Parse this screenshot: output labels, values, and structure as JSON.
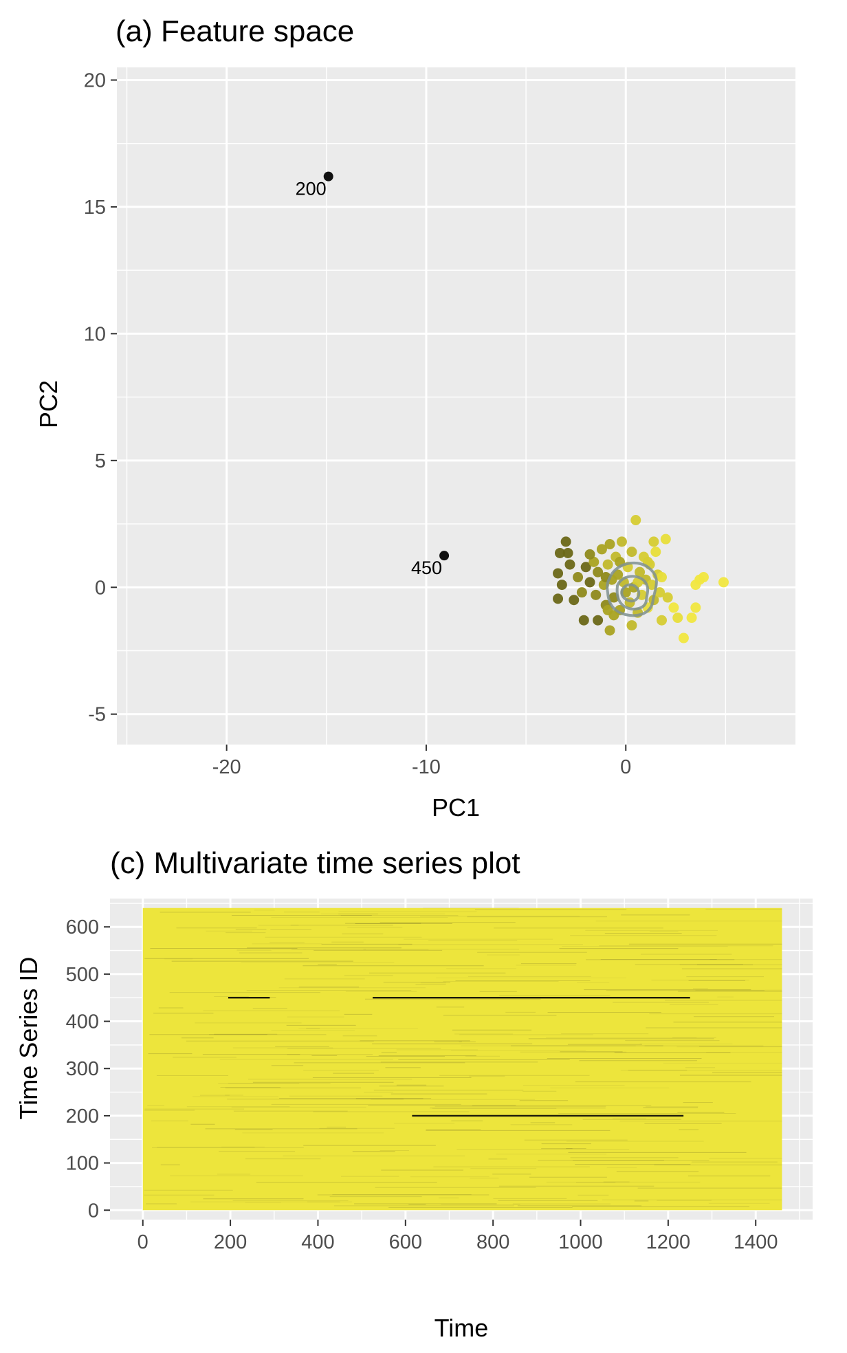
{
  "chart_data": [
    {
      "type": "scatter",
      "title": "(a) Feature space",
      "xlabel": "PC1",
      "ylabel": "PC2",
      "xlim": [
        -25.5,
        8.5
      ],
      "ylim": [
        -6.2,
        20.5
      ],
      "xticks": [
        -20,
        -10,
        0
      ],
      "yticks": [
        20,
        15,
        10,
        5,
        0,
        -5
      ],
      "grid": true,
      "legend": "none",
      "labeled_points": [
        {
          "id": "200",
          "x": -14.9,
          "y": 16.2
        },
        {
          "id": "450",
          "x": -9.1,
          "y": 1.25
        }
      ],
      "cluster_points": [
        [
          -3.3,
          1.35
        ],
        [
          -3.0,
          1.8
        ],
        [
          -2.9,
          1.35
        ],
        [
          -3.4,
          0.55
        ],
        [
          -3.2,
          0.1
        ],
        [
          -3.4,
          -0.45
        ],
        [
          -2.6,
          -0.5
        ],
        [
          -2.4,
          0.4
        ],
        [
          -2.2,
          -0.2
        ],
        [
          -2.0,
          0.8
        ],
        [
          -1.8,
          0.2
        ],
        [
          -1.6,
          1.0
        ],
        [
          -1.5,
          -0.3
        ],
        [
          -1.4,
          0.6
        ],
        [
          -1.2,
          1.5
        ],
        [
          -1.1,
          0.1
        ],
        [
          -1.0,
          -0.7
        ],
        [
          -0.9,
          0.9
        ],
        [
          -0.8,
          1.7
        ],
        [
          -0.7,
          0.3
        ],
        [
          -0.6,
          -0.4
        ],
        [
          -0.5,
          1.2
        ],
        [
          -0.4,
          0.5
        ],
        [
          -0.3,
          -0.9
        ],
        [
          -0.2,
          1.8
        ],
        [
          -0.1,
          0.2
        ],
        [
          0.0,
          -0.2
        ],
        [
          0.1,
          0.8
        ],
        [
          0.2,
          -0.6
        ],
        [
          0.3,
          1.4
        ],
        [
          0.4,
          0.0
        ],
        [
          0.5,
          2.65
        ],
        [
          0.6,
          -1.0
        ],
        [
          0.7,
          0.6
        ],
        [
          0.8,
          -0.3
        ],
        [
          0.9,
          1.2
        ],
        [
          1.0,
          0.3
        ],
        [
          1.1,
          -0.8
        ],
        [
          1.2,
          0.9
        ],
        [
          1.3,
          0.1
        ],
        [
          1.4,
          -0.5
        ],
        [
          1.5,
          1.4
        ],
        [
          1.6,
          0.5
        ],
        [
          1.7,
          -0.2
        ],
        [
          1.8,
          0.4
        ],
        [
          2.0,
          1.9
        ],
        [
          2.1,
          -0.4
        ],
        [
          2.4,
          -0.8
        ],
        [
          2.6,
          -1.2
        ],
        [
          -2.1,
          -1.3
        ],
        [
          -1.4,
          -1.3
        ],
        [
          -0.8,
          -1.7
        ],
        [
          0.3,
          -1.5
        ],
        [
          1.8,
          -1.3
        ],
        [
          2.9,
          -2.0
        ],
        [
          3.5,
          -0.8
        ],
        [
          3.7,
          0.3
        ],
        [
          3.9,
          0.4
        ],
        [
          3.3,
          -1.2
        ],
        [
          3.5,
          0.1
        ],
        [
          4.9,
          0.2
        ],
        [
          -0.9,
          -0.9
        ],
        [
          -1.8,
          1.3
        ],
        [
          -0.3,
          1.0
        ],
        [
          1.1,
          1.0
        ],
        [
          -2.8,
          0.9
        ],
        [
          -1.0,
          0.4
        ],
        [
          0.6,
          0.2
        ],
        [
          -0.6,
          -1.1
        ],
        [
          1.4,
          1.8
        ]
      ]
    },
    {
      "type": "heatmap",
      "title": "(c) Multivariate time series plot",
      "xlabel": "Time",
      "ylabel": "Time Series ID",
      "xlim": [
        -75,
        1530
      ],
      "ylim": [
        -20,
        660
      ],
      "xticks": [
        0,
        200,
        400,
        600,
        800,
        1000,
        1200,
        1400
      ],
      "yticks": [
        600,
        500,
        400,
        300,
        200,
        100,
        0
      ],
      "data_extent": {
        "time": [
          0,
          1460
        ],
        "series_id": [
          0,
          640
        ]
      },
      "fill_color": "#ede53c",
      "grid": true,
      "legend": "none",
      "highlighted_series": [
        {
          "id": 450,
          "time_ranges": [
            [
              195,
              290
            ],
            [
              525,
              1250
            ]
          ]
        },
        {
          "id": 200,
          "time_ranges": [
            [
              615,
              1235
            ]
          ]
        }
      ]
    }
  ],
  "colors": {
    "panel_bg": "#ebebeb",
    "grid": "#ffffff",
    "tick_text": "#4d4d4d",
    "outlier_point": "#111111",
    "contour": "#7f9191",
    "heat_fill": "#ede53c"
  }
}
